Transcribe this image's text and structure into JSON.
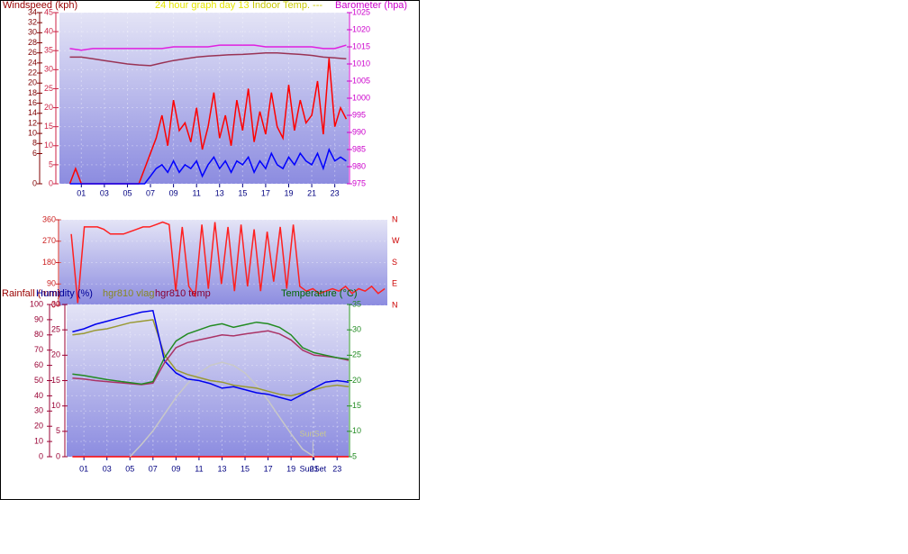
{
  "chart_data": [
    {
      "type": "line",
      "title": "24 hour graph day 13",
      "subtitle": "Indoor Temp. ---",
      "ylabel": "Windspeed (kph)",
      "y2label": "Barometer (hpa)",
      "grid": true,
      "xlim": [
        -0.9,
        24.2
      ],
      "xticks": [
        {
          "value": 1,
          "label": "01"
        },
        {
          "value": 3,
          "label": "03"
        },
        {
          "value": 5,
          "label": "05"
        },
        {
          "value": 7,
          "label": "07"
        },
        {
          "value": 9,
          "label": "09"
        },
        {
          "value": 11,
          "label": "11"
        },
        {
          "value": 13,
          "label": "13"
        },
        {
          "value": 15,
          "label": "15"
        },
        {
          "value": 17,
          "label": "17"
        },
        {
          "value": 19,
          "label": "19"
        },
        {
          "value": 21,
          "label": "21"
        },
        {
          "value": 23,
          "label": "23"
        }
      ],
      "ylim": [
        0,
        45
      ],
      "yticks": [
        0,
        5,
        10,
        15,
        20,
        25,
        30,
        35,
        40,
        45
      ],
      "y3lim": [
        0,
        34
      ],
      "y3ticks": [
        0,
        6,
        8,
        10,
        12,
        14,
        16,
        18,
        20,
        22,
        24,
        26,
        28,
        30,
        32,
        34
      ],
      "y2lim": [
        975,
        1025
      ],
      "y2ticks": [
        975,
        980,
        985,
        990,
        995,
        1000,
        1005,
        1010,
        1015,
        1020,
        1025
      ],
      "series": [
        {
          "name": "Windspeed (kph)",
          "color": "#ff0000",
          "x": [
            0,
            0.5,
            1,
            1.5,
            2,
            2.5,
            3,
            3.5,
            4,
            4.5,
            5,
            5.5,
            6,
            6.5,
            7,
            7.5,
            8,
            8.5,
            9,
            9.5,
            10,
            10.5,
            11,
            11.5,
            12,
            12.5,
            13,
            13.5,
            14,
            14.5,
            15,
            15.5,
            16,
            16.5,
            17,
            17.5,
            18,
            18.5,
            19,
            19.5,
            20,
            20.5,
            21,
            21.5,
            22,
            22.5,
            23,
            23.5,
            24
          ],
          "values": [
            0,
            4,
            0,
            0,
            0,
            0,
            0,
            0,
            0,
            0,
            0,
            0,
            0,
            4,
            8,
            12,
            18,
            10,
            22,
            14,
            16,
            11,
            20,
            9,
            15,
            24,
            12,
            18,
            10,
            22,
            14,
            25,
            11,
            19,
            13,
            24,
            15,
            12,
            26,
            14,
            22,
            16,
            18,
            27,
            13,
            33,
            15,
            20,
            17
          ]
        },
        {
          "color": "#0000ff",
          "x": [
            0,
            0.5,
            1,
            1.5,
            2,
            2.5,
            3,
            3.5,
            4,
            4.5,
            5,
            5.5,
            6,
            6.5,
            7,
            7.5,
            8,
            8.5,
            9,
            9.5,
            10,
            10.5,
            11,
            11.5,
            12,
            12.5,
            13,
            13.5,
            14,
            14.5,
            15,
            15.5,
            16,
            16.5,
            17,
            17.5,
            18,
            18.5,
            19,
            19.5,
            20,
            20.5,
            21,
            21.5,
            22,
            22.5,
            23,
            23.5,
            24
          ],
          "values": [
            0,
            0,
            0,
            0,
            0,
            0,
            0,
            0,
            0,
            0,
            0,
            0,
            0,
            0,
            2,
            4,
            5,
            3,
            6,
            3,
            5,
            4,
            6,
            2,
            5,
            7,
            4,
            6,
            3,
            6,
            5,
            7,
            3,
            6,
            4,
            8,
            5,
            4,
            7,
            5,
            8,
            6,
            5,
            8,
            4,
            9,
            6,
            7,
            6
          ]
        },
        {
          "name": "Barometer (hpa)",
          "color": "#e020e0",
          "axis": "y2",
          "x": [
            0,
            1,
            2,
            3,
            4,
            5,
            6,
            7,
            8,
            9,
            10,
            11,
            12,
            13,
            14,
            15,
            16,
            17,
            18,
            19,
            20,
            21,
            22,
            23,
            24
          ],
          "values": [
            1014.5,
            1014,
            1014.5,
            1014.5,
            1014.5,
            1014.5,
            1014.5,
            1014.5,
            1014.5,
            1015,
            1015,
            1015,
            1015,
            1015.5,
            1015.5,
            1015.5,
            1015.5,
            1015,
            1015,
            1015,
            1015,
            1015,
            1014.5,
            1014.5,
            1015.5
          ]
        },
        {
          "color": "#993355",
          "axis": "y2",
          "x": [
            0,
            1,
            2,
            3,
            4,
            5,
            6,
            7,
            8,
            9,
            10,
            11,
            12,
            13,
            14,
            15,
            16,
            17,
            18,
            19,
            20,
            21,
            22,
            23,
            24
          ],
          "values": [
            1012,
            1012,
            1011.5,
            1011,
            1010.5,
            1010,
            1009.7,
            1009.5,
            1010.3,
            1011,
            1011.5,
            1012,
            1012.3,
            1012.5,
            1012.7,
            1012.8,
            1013,
            1013.2,
            1013.2,
            1013,
            1012.8,
            1012.5,
            1012,
            1011.8,
            1011.5
          ]
        }
      ]
    },
    {
      "type": "line",
      "grid": true,
      "xlim": [
        -0.9,
        24.2
      ],
      "ylim": [
        0,
        360
      ],
      "yticks": [
        0,
        90,
        180,
        270,
        360
      ],
      "compass": [
        "N",
        "W",
        "S",
        "E",
        "N"
      ],
      "series": [
        {
          "color": "#ff2020",
          "x": [
            0,
            0.5,
            1,
            1.5,
            2,
            2.5,
            3,
            3.5,
            4,
            4.5,
            5,
            5.5,
            6,
            6.5,
            7,
            7.5,
            8,
            8.5,
            9,
            9.5,
            10,
            10.5,
            11,
            11.5,
            12,
            12.5,
            13,
            13.5,
            14,
            14.5,
            15,
            15.5,
            16,
            16.5,
            17,
            17.5,
            18,
            18.5,
            19,
            19.5,
            20,
            20.5,
            21,
            21.5,
            22,
            22.5,
            23,
            23.5,
            24
          ],
          "values": [
            300,
            10,
            330,
            330,
            330,
            320,
            300,
            300,
            300,
            310,
            320,
            330,
            330,
            340,
            350,
            340,
            60,
            330,
            80,
            40,
            340,
            70,
            350,
            90,
            330,
            60,
            340,
            80,
            320,
            60,
            310,
            100,
            330,
            70,
            340,
            80,
            60,
            70,
            50,
            60,
            70,
            60,
            80,
            50,
            70,
            60,
            80,
            50,
            70
          ]
        }
      ]
    },
    {
      "type": "line",
      "ylabel": "Humidity (%)",
      "grid": true,
      "xlim": [
        -0.5,
        24
      ],
      "xticks": [
        {
          "value": 1,
          "label": "01"
        },
        {
          "value": 3,
          "label": "03"
        },
        {
          "value": 5,
          "label": "05"
        },
        {
          "value": 7,
          "label": "07"
        },
        {
          "value": 9,
          "label": "09"
        },
        {
          "value": 11,
          "label": "11"
        },
        {
          "value": 13,
          "label": "13"
        },
        {
          "value": 15,
          "label": "15"
        },
        {
          "value": 17,
          "label": "17"
        },
        {
          "value": 19,
          "label": "19"
        },
        {
          "value": 20.9,
          "label": "SunSet"
        },
        {
          "value": 21,
          "label": "21"
        },
        {
          "value": 23,
          "label": "23"
        }
      ],
      "ylim": [
        0,
        100
      ],
      "yticks": [
        0,
        10,
        20,
        30,
        40,
        50,
        60,
        70,
        80,
        90,
        100
      ],
      "y3lim": [
        0,
        30
      ],
      "y3ticks": [
        0,
        5,
        10,
        15,
        20,
        25,
        30
      ],
      "y2lim": [
        5,
        35
      ],
      "y2ticks": [
        5,
        10,
        15,
        20,
        25,
        30,
        35
      ],
      "annotations": [
        {
          "x": 20.9,
          "y": 10,
          "text": "SunSet"
        }
      ],
      "series": [
        {
          "name": "Rainfall (mm)",
          "color": "#ff0000",
          "axis": "y3",
          "x": [
            0,
            1,
            2,
            3,
            4,
            5,
            6,
            7,
            8,
            9,
            10,
            11,
            12,
            13,
            14,
            15,
            16,
            17,
            18,
            19,
            20,
            21,
            22,
            23,
            24
          ],
          "values": [
            0,
            0,
            0,
            0,
            0,
            0,
            0,
            0,
            0,
            0,
            0,
            0,
            0,
            0,
            0,
            0,
            0,
            0,
            0,
            0,
            0,
            0,
            0,
            0,
            0
          ]
        },
        {
          "color": "#c8c8c8",
          "x": [
            0,
            1,
            2,
            3,
            4,
            5,
            6,
            7,
            8,
            9,
            10,
            11,
            12,
            13,
            14,
            15,
            16,
            17,
            18,
            19,
            20,
            21,
            22,
            23,
            24
          ],
          "values": [
            null,
            null,
            null,
            null,
            null,
            0,
            8,
            17,
            28,
            39,
            48,
            55,
            60,
            62,
            60,
            55,
            47,
            37,
            26,
            15,
            5,
            0,
            null,
            null,
            null
          ]
        },
        {
          "name": "hgr810 vlag",
          "color": "#999933",
          "x": [
            0,
            1,
            2,
            3,
            4,
            5,
            6,
            7,
            8,
            9,
            10,
            11,
            12,
            13,
            14,
            15,
            16,
            17,
            18,
            19,
            20,
            21,
            22,
            23,
            24
          ],
          "values": [
            80,
            81,
            83,
            84,
            86,
            88,
            89,
            90,
            67,
            57,
            54,
            52,
            50,
            49,
            47,
            46,
            45,
            43,
            41,
            40,
            42,
            44,
            46,
            47,
            46
          ]
        },
        {
          "color": "#0000ee",
          "x": [
            0,
            1,
            2,
            3,
            4,
            5,
            6,
            7,
            8,
            9,
            10,
            11,
            12,
            13,
            14,
            15,
            16,
            17,
            18,
            19,
            20,
            21,
            22,
            23,
            24
          ],
          "values": [
            82,
            84,
            87,
            89,
            91,
            93,
            95,
            96,
            63,
            55,
            51,
            50,
            48,
            45,
            46,
            44,
            42,
            41,
            39,
            37,
            41,
            45,
            49,
            50,
            49
          ]
        },
        {
          "name": "hgr810 temp",
          "color": "#aa3366",
          "axis": "y2",
          "x": [
            0,
            1,
            2,
            3,
            4,
            5,
            6,
            7,
            8,
            9,
            10,
            11,
            12,
            13,
            14,
            15,
            16,
            17,
            18,
            19,
            20,
            21,
            22,
            23,
            24
          ],
          "values": [
            20.5,
            20.3,
            20,
            19.8,
            19.6,
            19.4,
            19.2,
            19.5,
            23.5,
            26.5,
            27.5,
            28,
            28.5,
            29,
            28.8,
            29.2,
            29.5,
            29.8,
            29.2,
            28,
            26,
            25,
            24.8,
            24.5,
            24
          ]
        },
        {
          "name": "Temperature (°C)",
          "color": "#228b22",
          "axis": "y2",
          "x": [
            0,
            1,
            2,
            3,
            4,
            5,
            6,
            7,
            8,
            9,
            10,
            11,
            12,
            13,
            14,
            15,
            16,
            17,
            18,
            19,
            20,
            21,
            22,
            23,
            24
          ],
          "values": [
            21.3,
            21,
            20.6,
            20.2,
            19.9,
            19.6,
            19.3,
            19.8,
            24.5,
            27.8,
            29.2,
            30,
            30.8,
            31.2,
            30.5,
            31,
            31.5,
            31.2,
            30.5,
            29,
            26.5,
            25.5,
            25,
            24.5,
            24.2
          ]
        }
      ]
    }
  ]
}
